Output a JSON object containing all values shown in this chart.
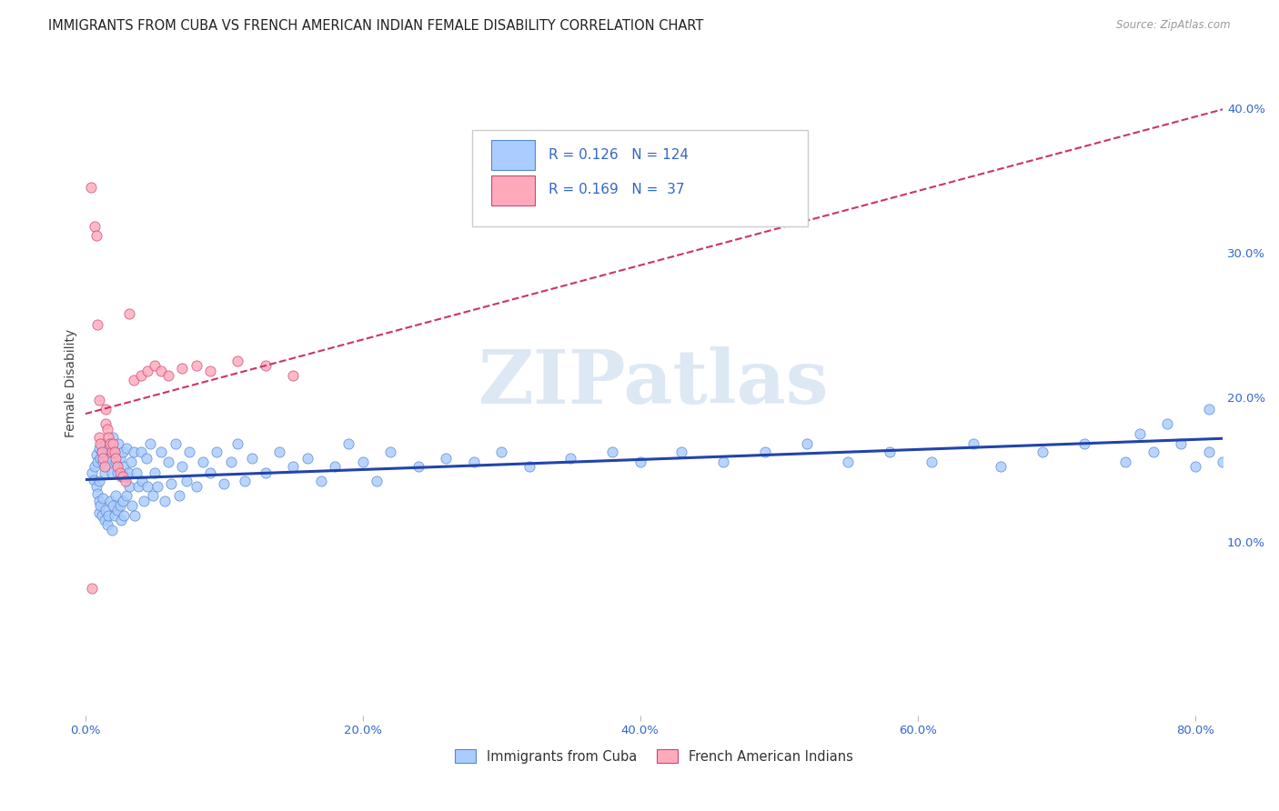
{
  "title": "IMMIGRANTS FROM CUBA VS FRENCH AMERICAN INDIAN FEMALE DISABILITY CORRELATION CHART",
  "source": "Source: ZipAtlas.com",
  "ylabel": "Female Disability",
  "xlim": [
    0.0,
    0.82
  ],
  "ylim": [
    -0.02,
    0.44
  ],
  "xtick_vals": [
    0.0,
    0.2,
    0.4,
    0.6,
    0.8
  ],
  "ytick_vals": [
    0.1,
    0.2,
    0.3,
    0.4
  ],
  "series1_fill": "#aaccff",
  "series1_edge": "#5588cc",
  "series2_fill": "#ffaabb",
  "series2_edge": "#cc4477",
  "trend1_color": "#2244aa",
  "trend2_color": "#cc3366",
  "text_color": "#3366cc",
  "watermark_color": "#dde8f5",
  "grid_color": "#ddddee",
  "bg_color": "#ffffff",
  "marker_size": 65,
  "s1_x": [
    0.005,
    0.006,
    0.007,
    0.008,
    0.008,
    0.009,
    0.009,
    0.01,
    0.01,
    0.01,
    0.01,
    0.011,
    0.011,
    0.012,
    0.012,
    0.013,
    0.013,
    0.014,
    0.014,
    0.015,
    0.015,
    0.016,
    0.016,
    0.017,
    0.017,
    0.018,
    0.018,
    0.019,
    0.019,
    0.02,
    0.02,
    0.021,
    0.021,
    0.022,
    0.022,
    0.023,
    0.023,
    0.024,
    0.025,
    0.025,
    0.026,
    0.026,
    0.027,
    0.027,
    0.028,
    0.028,
    0.029,
    0.03,
    0.03,
    0.031,
    0.032,
    0.033,
    0.034,
    0.035,
    0.036,
    0.037,
    0.038,
    0.04,
    0.041,
    0.042,
    0.044,
    0.045,
    0.047,
    0.049,
    0.05,
    0.052,
    0.055,
    0.057,
    0.06,
    0.062,
    0.065,
    0.068,
    0.07,
    0.073,
    0.075,
    0.08,
    0.085,
    0.09,
    0.095,
    0.1,
    0.105,
    0.11,
    0.115,
    0.12,
    0.13,
    0.14,
    0.15,
    0.16,
    0.17,
    0.18,
    0.19,
    0.2,
    0.21,
    0.22,
    0.24,
    0.26,
    0.28,
    0.3,
    0.32,
    0.35,
    0.38,
    0.4,
    0.43,
    0.46,
    0.49,
    0.52,
    0.55,
    0.58,
    0.61,
    0.64,
    0.66,
    0.69,
    0.72,
    0.75,
    0.77,
    0.79,
    0.8,
    0.81,
    0.82,
    0.83,
    0.84,
    0.81,
    0.78,
    0.76
  ],
  "s1_y": [
    0.148,
    0.143,
    0.152,
    0.138,
    0.16,
    0.133,
    0.155,
    0.165,
    0.128,
    0.142,
    0.12,
    0.158,
    0.125,
    0.162,
    0.118,
    0.155,
    0.13,
    0.148,
    0.115,
    0.168,
    0.122,
    0.158,
    0.112,
    0.165,
    0.118,
    0.155,
    0.128,
    0.148,
    0.108,
    0.172,
    0.125,
    0.162,
    0.118,
    0.155,
    0.132,
    0.148,
    0.122,
    0.168,
    0.158,
    0.125,
    0.145,
    0.115,
    0.162,
    0.128,
    0.152,
    0.118,
    0.145,
    0.165,
    0.132,
    0.148,
    0.138,
    0.155,
    0.125,
    0.162,
    0.118,
    0.148,
    0.138,
    0.162,
    0.142,
    0.128,
    0.158,
    0.138,
    0.168,
    0.132,
    0.148,
    0.138,
    0.162,
    0.128,
    0.155,
    0.14,
    0.168,
    0.132,
    0.152,
    0.142,
    0.162,
    0.138,
    0.155,
    0.148,
    0.162,
    0.14,
    0.155,
    0.168,
    0.142,
    0.158,
    0.148,
    0.162,
    0.152,
    0.158,
    0.142,
    0.152,
    0.168,
    0.155,
    0.142,
    0.162,
    0.152,
    0.158,
    0.155,
    0.162,
    0.152,
    0.158,
    0.162,
    0.155,
    0.162,
    0.155,
    0.162,
    0.168,
    0.155,
    0.162,
    0.155,
    0.168,
    0.152,
    0.162,
    0.168,
    0.155,
    0.162,
    0.168,
    0.152,
    0.162,
    0.155,
    0.168,
    0.2,
    0.192,
    0.182,
    0.175
  ],
  "s2_x": [
    0.004,
    0.005,
    0.007,
    0.008,
    0.009,
    0.01,
    0.01,
    0.011,
    0.012,
    0.013,
    0.014,
    0.015,
    0.015,
    0.016,
    0.017,
    0.018,
    0.019,
    0.02,
    0.021,
    0.022,
    0.023,
    0.025,
    0.027,
    0.029,
    0.032,
    0.035,
    0.04,
    0.045,
    0.05,
    0.055,
    0.06,
    0.07,
    0.08,
    0.09,
    0.11,
    0.13,
    0.15
  ],
  "s2_y": [
    0.345,
    0.068,
    0.318,
    0.312,
    0.25,
    0.198,
    0.172,
    0.168,
    0.162,
    0.158,
    0.152,
    0.192,
    0.182,
    0.178,
    0.172,
    0.168,
    0.162,
    0.168,
    0.162,
    0.158,
    0.152,
    0.148,
    0.145,
    0.142,
    0.258,
    0.212,
    0.215,
    0.218,
    0.222,
    0.218,
    0.215,
    0.22,
    0.222,
    0.218,
    0.225,
    0.222,
    0.215
  ]
}
